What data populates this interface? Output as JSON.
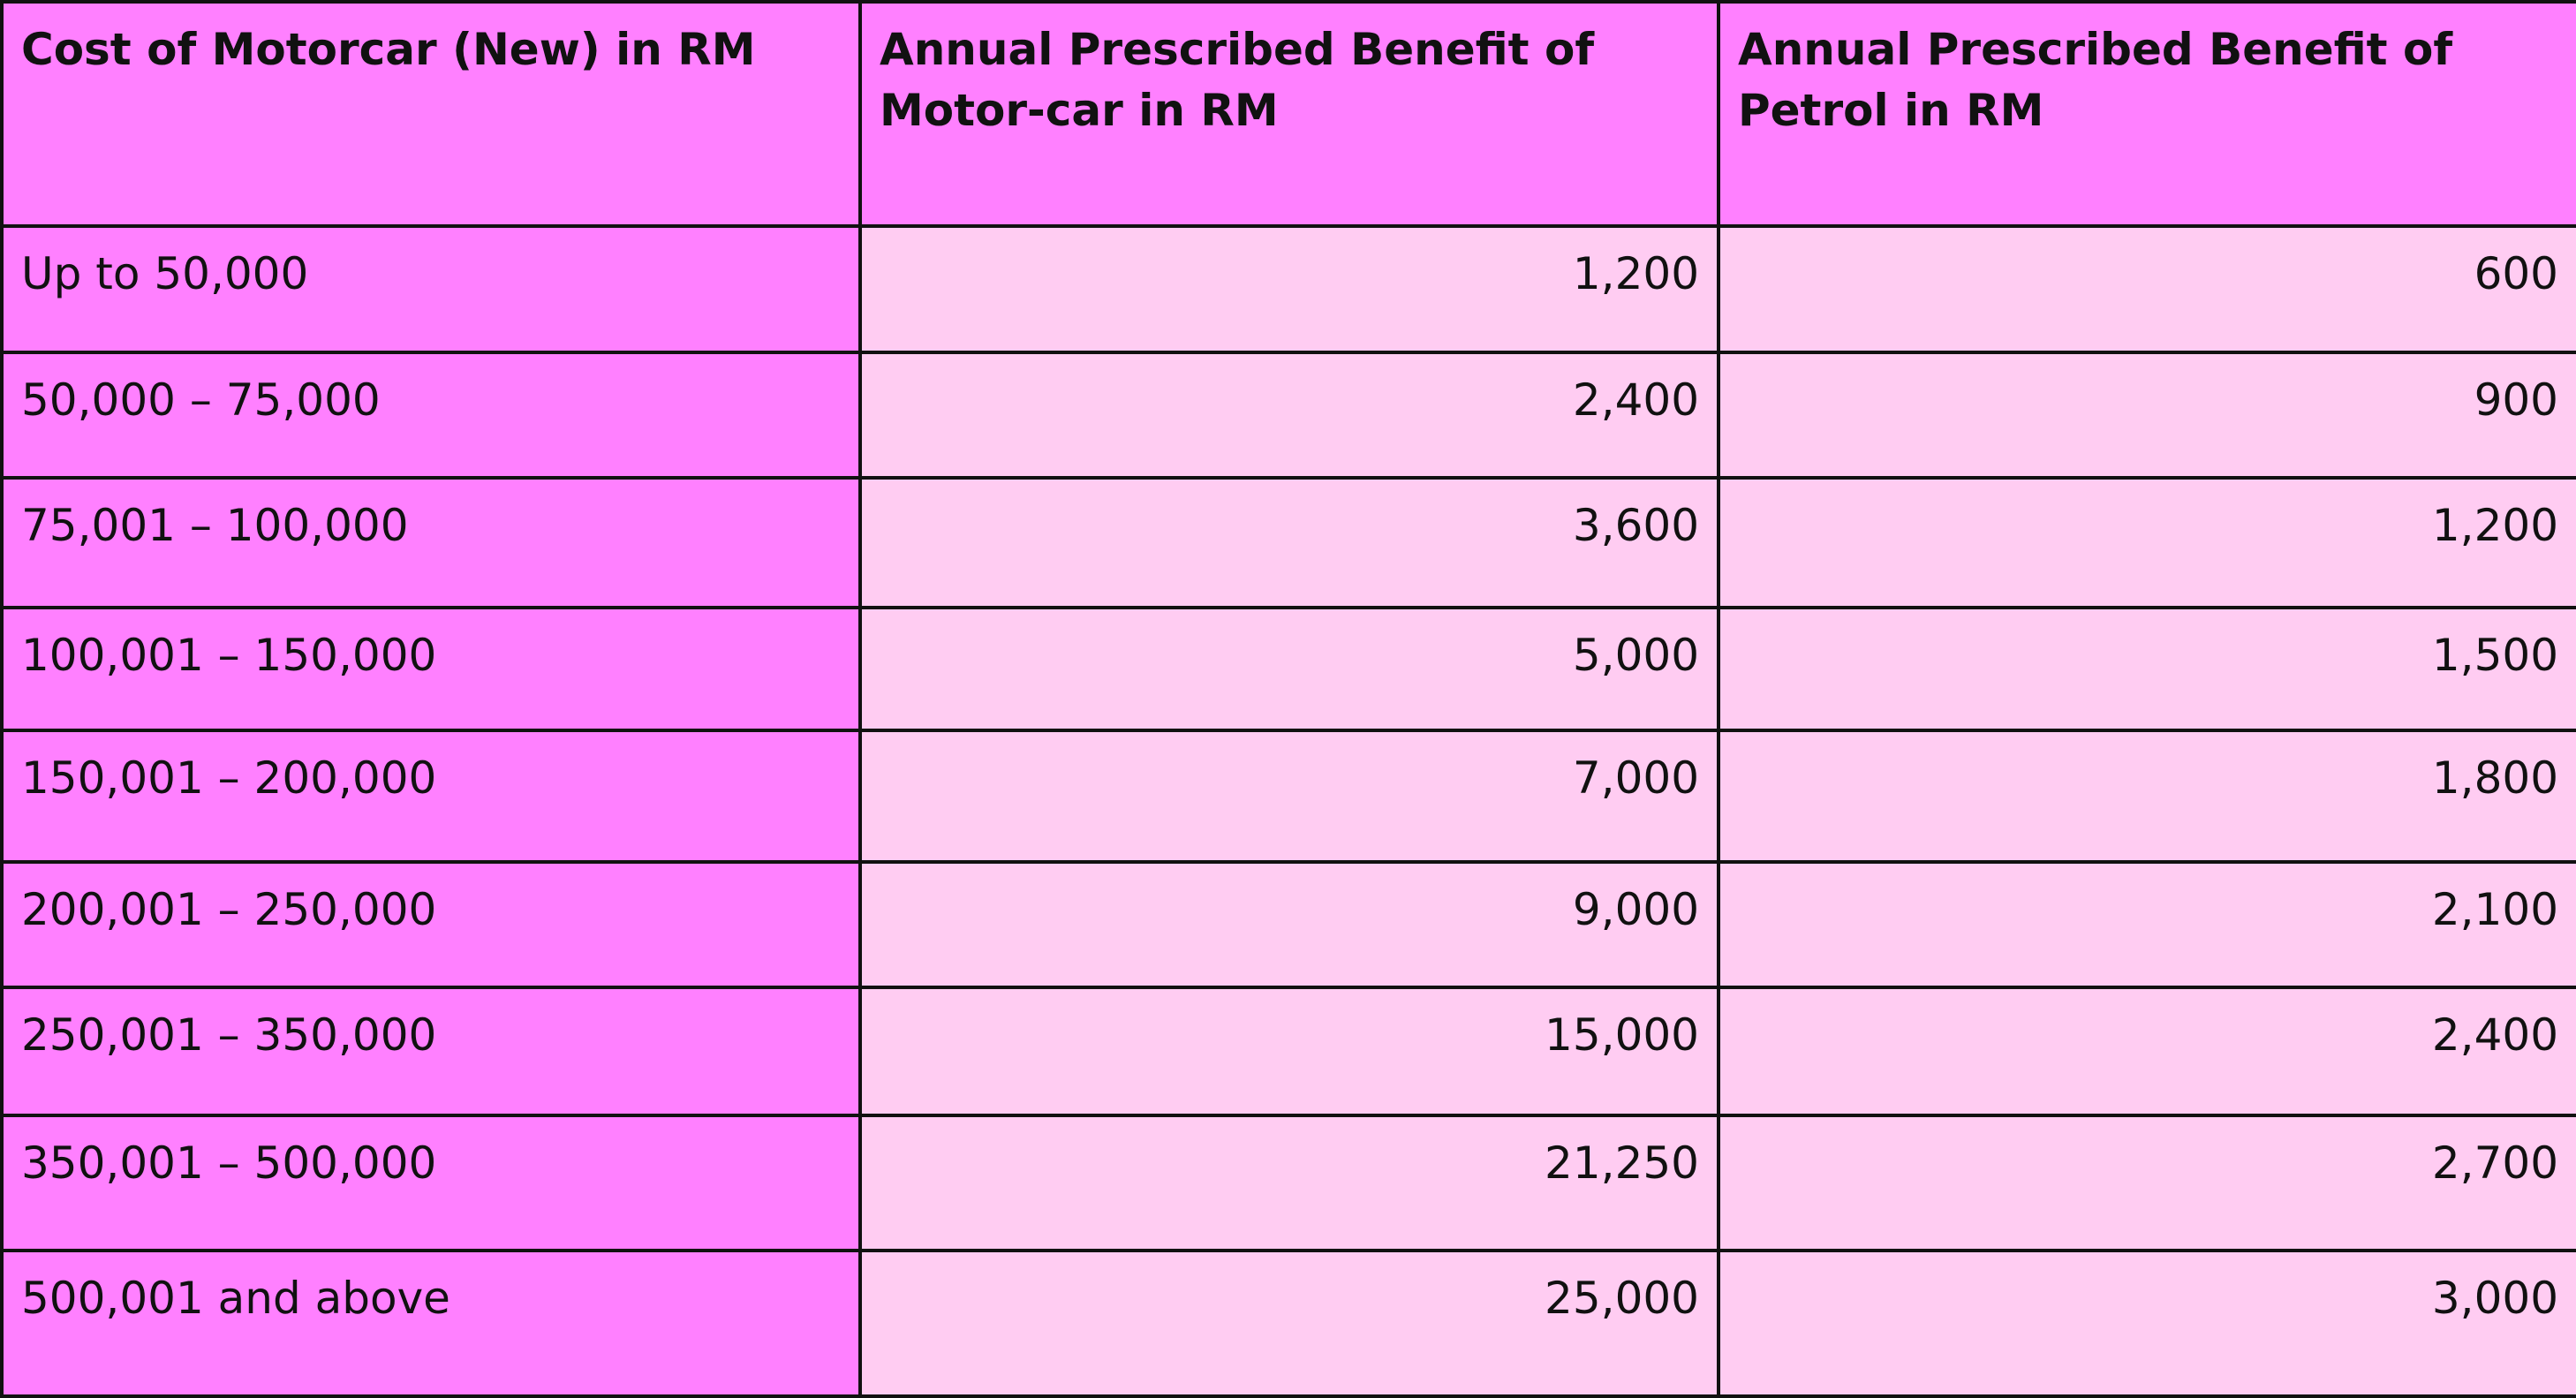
{
  "table": {
    "headers": [
      "Cost of Motorcar (New) in RM",
      "Annual Prescribed Benefit of Motor-car in RM",
      "Annual Prescribed Benefit of Petrol in RM"
    ],
    "rows": [
      {
        "cost": "Up to 50,000",
        "motorcar": "1,200",
        "petrol": "600"
      },
      {
        "cost": "50,000 – 75,000",
        "motorcar": "2,400",
        "petrol": "900"
      },
      {
        "cost": "75,001 – 100,000",
        "motorcar": "3,600",
        "petrol": "1,200"
      },
      {
        "cost": "100,001 – 150,000",
        "motorcar": "5,000",
        "petrol": "1,500"
      },
      {
        "cost": "150,001 – 200,000",
        "motorcar": "7,000",
        "petrol": "1,800"
      },
      {
        "cost": "200,001 – 250,000",
        "motorcar": "9,000",
        "petrol": "2,100"
      },
      {
        "cost": "250,001 – 350,000",
        "motorcar": "15,000",
        "petrol": "2,400"
      },
      {
        "cost": "350,001 – 500,000",
        "motorcar": "21,250",
        "petrol": "2,700"
      },
      {
        "cost": "500,001 and above",
        "motorcar": "25,000",
        "petrol": "3,000"
      }
    ]
  },
  "colors": {
    "header_bg": "#ff80ff",
    "label_bg": "#ff80ff",
    "value_bg": "#ffccf2",
    "border": "#111111"
  }
}
